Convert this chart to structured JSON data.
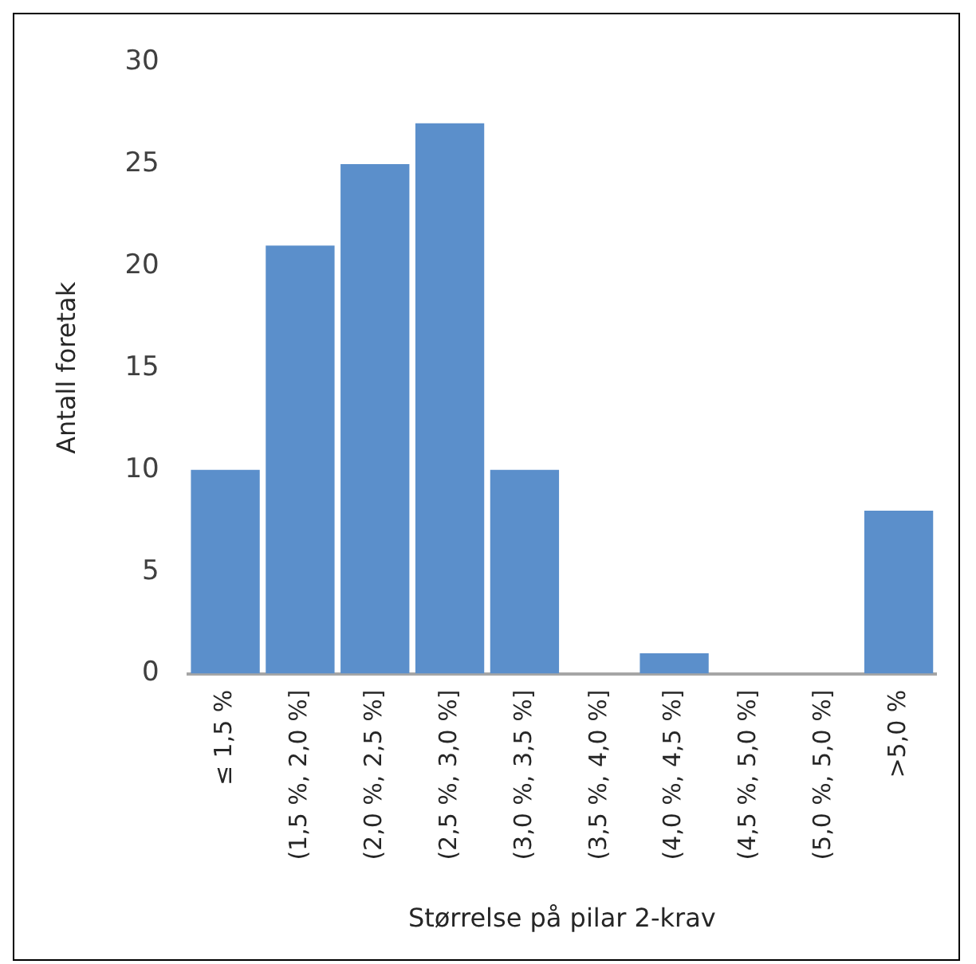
{
  "chart_data": {
    "type": "bar",
    "xlabel": "Størrelse på pilar 2-krav",
    "ylabel": "Antall foretak",
    "categories": [
      "≤ 1,5 %",
      "(1,5 %, 2,0 %]",
      "(2,0 %, 2,5 %]",
      "(2,5 %, 3,0 %]",
      "(3,0 %, 3,5 %]",
      "(3,5 %, 4,0 %]",
      "(4,0 %, 4,5 %]",
      "(4,5 %, 5,0 %]",
      "(5,0 %, 5,0 %]",
      ">5,0 %"
    ],
    "values": [
      10,
      21,
      25,
      27,
      10,
      0,
      1,
      0,
      0,
      8
    ],
    "color": "#5b8fcb",
    "ylim": [
      0,
      30
    ],
    "yticks": [
      0,
      5,
      10,
      15,
      20,
      25,
      30
    ],
    "grid": false,
    "legend": false
  }
}
